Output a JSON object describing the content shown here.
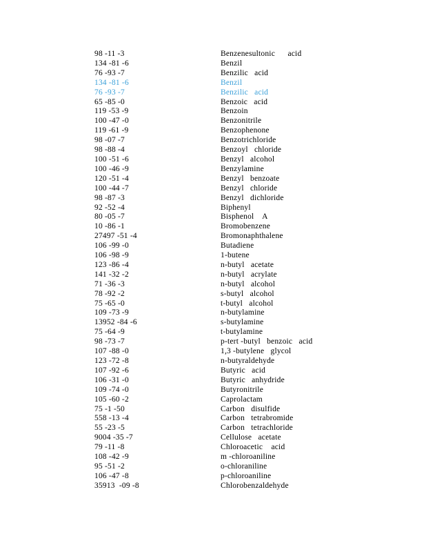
{
  "page": {
    "background": "#ffffff",
    "text_color": "#000000",
    "link_color": "#3ba0d9"
  },
  "table": {
    "columns": [
      "cas_number",
      "chemical_name"
    ],
    "rows": [
      {
        "cas": "98 -11 -3",
        "name": "Benzenesultonic      acid",
        "highlighted": false
      },
      {
        "cas": "134 -81 -6",
        "name": "Benzil",
        "highlighted": false
      },
      {
        "cas": "76 -93 -7",
        "name": "Benzilic   acid",
        "highlighted": false
      },
      {
        "cas": "134 -81 -6",
        "name": "Benzil",
        "highlighted": true
      },
      {
        "cas": "76 -93 -7",
        "name": "Benzilic   acid",
        "highlighted": true
      },
      {
        "cas": "65 -85 -0",
        "name": "Benzoic   acid",
        "highlighted": false
      },
      {
        "cas": "119 -53 -9",
        "name": "Benzoin",
        "highlighted": false
      },
      {
        "cas": "100 -47 -0",
        "name": "Benzonitrile",
        "highlighted": false
      },
      {
        "cas": "119 -61 -9",
        "name": "Benzophenone",
        "highlighted": false
      },
      {
        "cas": "98 -07 -7",
        "name": "Benzotrichloride",
        "highlighted": false
      },
      {
        "cas": "98 -88 -4",
        "name": "Benzoyl   chloride",
        "highlighted": false
      },
      {
        "cas": "100 -51 -6",
        "name": "Benzyl   alcohol",
        "highlighted": false
      },
      {
        "cas": "100 -46 -9",
        "name": "Benzylamine",
        "highlighted": false
      },
      {
        "cas": "120 -51 -4",
        "name": "Benzyl   benzoate",
        "highlighted": false
      },
      {
        "cas": "100 -44 -7",
        "name": "Benzyl   chloride",
        "highlighted": false
      },
      {
        "cas": "98 -87 -3",
        "name": "Benzyl   dichloride",
        "highlighted": false
      },
      {
        "cas": "92 -52 -4",
        "name": "Biphenyl",
        "highlighted": false
      },
      {
        "cas": "80 -05 -7",
        "name": "Bisphenol    A",
        "highlighted": false
      },
      {
        "cas": "10 -86 -1",
        "name": "Bromobenzene",
        "highlighted": false
      },
      {
        "cas": "27497 -51 -4",
        "name": "Bromonaphthalene",
        "highlighted": false
      },
      {
        "cas": "106 -99 -0",
        "name": "Butadiene",
        "highlighted": false
      },
      {
        "cas": "106 -98 -9",
        "name": "1-butene",
        "highlighted": false
      },
      {
        "cas": "123 -86 -4",
        "name": "n-butyl   acetate",
        "highlighted": false
      },
      {
        "cas": "141 -32 -2",
        "name": "n-butyl   acrylate",
        "highlighted": false
      },
      {
        "cas": "71 -36 -3",
        "name": "n-butyl   alcohol",
        "highlighted": false
      },
      {
        "cas": "78 -92 -2",
        "name": "s-butyl   alcohol",
        "highlighted": false
      },
      {
        "cas": "75 -65 -0",
        "name": "t-butyl   alcohol",
        "highlighted": false
      },
      {
        "cas": "109 -73 -9",
        "name": "n-butylamine",
        "highlighted": false
      },
      {
        "cas": "13952 -84 -6",
        "name": "s-butylamine",
        "highlighted": false
      },
      {
        "cas": "75 -64 -9",
        "name": "t-butylamine",
        "highlighted": false
      },
      {
        "cas": "98 -73 -7",
        "name": "p-tert -butyl   benzoic   acid",
        "highlighted": false
      },
      {
        "cas": "107 -88 -0",
        "name": "1,3 -butylene   glycol",
        "highlighted": false
      },
      {
        "cas": "123 -72 -8",
        "name": "n-butyraldehyde",
        "highlighted": false
      },
      {
        "cas": "107 -92 -6",
        "name": "Butyric   acid",
        "highlighted": false
      },
      {
        "cas": "106 -31 -0",
        "name": "Butyric   anhydride",
        "highlighted": false
      },
      {
        "cas": "109 -74 -0",
        "name": "Butyronitrile",
        "highlighted": false
      },
      {
        "cas": "105 -60 -2",
        "name": "Caprolactam",
        "highlighted": false
      },
      {
        "cas": "75 -1 -50",
        "name": "Carbon   disulfide",
        "highlighted": false
      },
      {
        "cas": "558 -13 -4",
        "name": "Carbon   tetrabromide",
        "highlighted": false
      },
      {
        "cas": "55 -23 -5",
        "name": "Carbon   tetrachloride",
        "highlighted": false
      },
      {
        "cas": "9004 -35 -7",
        "name": "Cellulose   acetate",
        "highlighted": false
      },
      {
        "cas": "79 -11 -8",
        "name": "Chloroacetic    acid",
        "highlighted": false
      },
      {
        "cas": "108 -42 -9",
        "name": "m -chloroaniline",
        "highlighted": false
      },
      {
        "cas": "95 -51 -2",
        "name": "o-chloraniline",
        "highlighted": false
      },
      {
        "cas": "106 -47 -8",
        "name": "p-chloroaniline",
        "highlighted": false
      },
      {
        "cas": "35913  -09 -8",
        "name": "Chlorobenzaldehyde",
        "highlighted": false
      }
    ]
  }
}
